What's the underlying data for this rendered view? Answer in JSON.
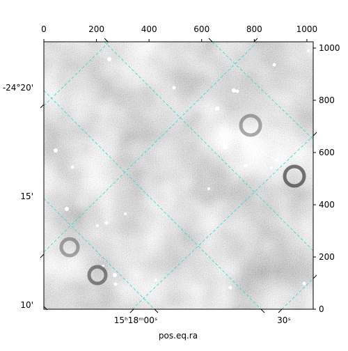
{
  "chart_data": {
    "type": "image",
    "xlim": [
      0,
      1024
    ],
    "ylim": [
      0,
      1024
    ],
    "xticks": [
      0,
      200,
      400,
      600,
      800,
      1000
    ],
    "yticks": [
      0,
      200,
      400,
      600,
      800,
      1000
    ],
    "ra_ticks": [
      "15ʰ18ᵐ00ˢ",
      "30ˢ"
    ],
    "dec_ticks": [
      "-24°20'",
      "15'",
      "10'"
    ],
    "xlabel": "pos.eq.ra",
    "grid": true
  }
}
